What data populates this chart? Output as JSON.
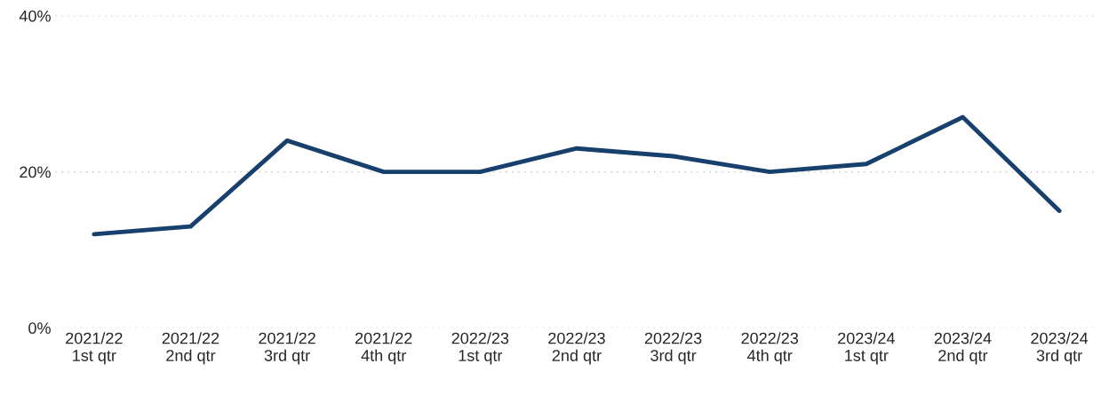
{
  "chart_data": {
    "type": "line",
    "categories": [
      "2021/22\n1st qtr",
      "2021/22\n2nd qtr",
      "2021/22\n3rd qtr",
      "2021/22\n4th qtr",
      "2022/23\n1st qtr",
      "2022/23\n2nd qtr",
      "2022/23\n3rd qtr",
      "2022/23\n4th qtr",
      "2023/24\n1st qtr",
      "2023/24\n2nd qtr",
      "2023/24\n3rd qtr"
    ],
    "series": [
      {
        "color": "#17406d",
        "values": [
          12,
          13,
          24,
          20,
          20,
          23,
          22,
          20,
          21,
          27,
          15
        ]
      }
    ],
    "ylim": [
      0,
      40
    ],
    "yticks": [
      {
        "value": 0,
        "label": "0%"
      },
      {
        "value": 20,
        "label": "20%"
      },
      {
        "value": 40,
        "label": "40%"
      }
    ],
    "grid": "y",
    "legend": false,
    "marker": "none",
    "line_style": "solid"
  }
}
